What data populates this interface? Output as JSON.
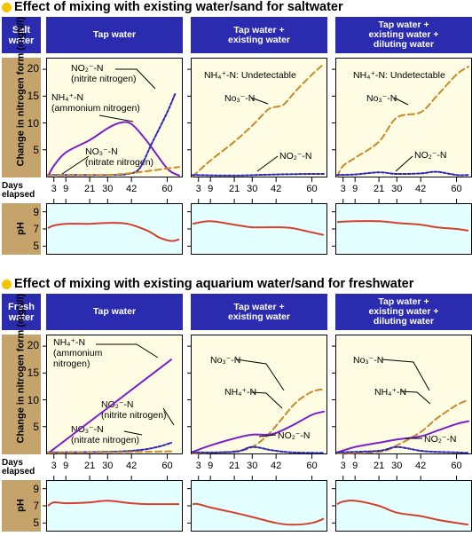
{
  "sections": [
    {
      "title": "Effect of mixing with existing water/sand for saltwater",
      "row_label": "Salt\nwater",
      "ph_label": "pH",
      "y_axis_label": "Change in nitrogen\nform (mgN/l)",
      "days_label": "Days\nelapsed",
      "columns": [
        {
          "header": "Tap water",
          "annotations": [
            {
              "text": "NO₂⁻-N\n(nitrite nitrogen)"
            },
            {
              "text": "NH₄⁺-N\n(ammonium nitrogen)"
            },
            {
              "text": "NO₃⁻-N\n(nitrate nitrogen)"
            }
          ]
        },
        {
          "header": "Tap water +\nexisting water",
          "annotations": [
            {
              "text": "NH₄⁺-N: Undetectable"
            },
            {
              "text": "No₃⁻-N"
            },
            {
              "text": "NO₂⁻-N"
            }
          ]
        },
        {
          "header": "Tap water +\nexisting water +\ndiluting water",
          "annotations": [
            {
              "text": "NH₄⁺-N: Undetectable"
            },
            {
              "text": "No₃⁻-N"
            },
            {
              "text": "NO₂⁻-N"
            }
          ]
        }
      ]
    },
    {
      "title": "Effect of mixing with existing aquarium water/sand for freshwater",
      "row_label": "Fresh\nwater",
      "ph_label": "pH",
      "y_axis_label": "Change in nitrogen\nform (mgN/l)",
      "days_label": "Days\nelapsed",
      "columns": [
        {
          "header": "Tap water",
          "annotations": [
            {
              "text": "NH₄⁺-N\n(ammonium\nnitrogen)"
            },
            {
              "text": "NO₂⁻-N\n(nitrite nitrogen)"
            },
            {
              "text": "NO₃⁻-N\n(nitrate nitrogen)"
            }
          ]
        },
        {
          "header": "Tap water +\nexisting water",
          "annotations": [
            {
              "text": "No₃⁻-N"
            },
            {
              "text": "NH₄⁺-N"
            },
            {
              "text": "NO₂⁻-N"
            }
          ]
        },
        {
          "header": "Tap water +\nexisting water +\ndiluting water",
          "annotations": [
            {
              "text": "No₃⁻-N"
            },
            {
              "text": "NH₄⁺-N"
            },
            {
              "text": "NO₂⁻-N"
            }
          ]
        }
      ]
    }
  ],
  "colors": {
    "header_bg": "#2b2bb0",
    "label_bg": "#c4a46b",
    "panel_bg": "#fffce4",
    "ph_bg": "#e4ffff",
    "ammonium": "#7a1fc9",
    "nitrite": "#2727b8",
    "nitrate": "#c98a2a",
    "ph_line": "#d4402a",
    "bullet": "#f5c400"
  },
  "chart_data": [
    {
      "type": "line",
      "panel": "saltwater-tap-water",
      "x_ticks": [
        3,
        9,
        21,
        30,
        42,
        60
      ],
      "xlim": [
        0,
        66
      ],
      "ylim": [
        0,
        22
      ],
      "y_ticks": [
        5,
        10,
        15,
        20
      ],
      "series": [
        {
          "name": "NH₄⁺-N",
          "x": [
            0,
            3,
            9,
            21,
            30,
            36,
            42,
            50,
            60,
            66
          ],
          "values": [
            0,
            2,
            4.5,
            6.8,
            9,
            10,
            9.8,
            6.5,
            1.5,
            0.2
          ]
        },
        {
          "name": "NO₂⁻-N",
          "x": [
            0,
            30,
            40,
            46,
            52,
            60,
            64
          ],
          "values": [
            0.3,
            0.3,
            0.5,
            1.5,
            6,
            12,
            15.5
          ]
        },
        {
          "name": "NO₃⁻-N",
          "x": [
            0,
            30,
            45,
            60,
            66
          ],
          "values": [
            0.2,
            0.3,
            0.8,
            1.5,
            1.8
          ]
        }
      ],
      "ph": {
        "x": [
          0,
          3,
          9,
          21,
          30,
          40,
          50,
          56,
          62,
          66
        ],
        "values": [
          7.1,
          7.4,
          7.6,
          7.6,
          7.7,
          7.6,
          6.8,
          6.0,
          5.6,
          5.8
        ],
        "ylim": [
          4,
          10
        ],
        "y_ticks": [
          5,
          7,
          9
        ]
      }
    },
    {
      "type": "line",
      "panel": "saltwater-tap-plus-existing",
      "x_ticks": [
        3,
        9,
        21,
        30,
        42,
        60
      ],
      "xlim": [
        0,
        66
      ],
      "ylim": [
        0,
        22
      ],
      "y_ticks": [
        5,
        10,
        15,
        20
      ],
      "series": [
        {
          "name": "No₃⁻-N",
          "x": [
            0,
            9,
            21,
            30,
            38,
            42,
            46,
            52,
            60,
            66
          ],
          "values": [
            0,
            3,
            6.5,
            9.5,
            12.5,
            13,
            13.5,
            16,
            19,
            21
          ]
        },
        {
          "name": "NO₂⁻-N",
          "x": [
            0,
            21,
            42,
            60,
            66
          ],
          "values": [
            0.3,
            0.2,
            0.4,
            0.5,
            0.5
          ]
        }
      ],
      "ph": {
        "x": [
          0,
          9,
          21,
          30,
          42,
          50,
          60,
          66
        ],
        "values": [
          7.6,
          7.9,
          7.5,
          7.2,
          7.2,
          7.1,
          6.6,
          6.3
        ],
        "ylim": [
          4,
          10
        ],
        "y_ticks": [
          5,
          7,
          9
        ]
      }
    },
    {
      "type": "line",
      "panel": "saltwater-tap-plus-existing-plus-diluting",
      "x_ticks": [
        3,
        9,
        21,
        30,
        42,
        60
      ],
      "xlim": [
        0,
        66
      ],
      "ylim": [
        0,
        22
      ],
      "y_ticks": [
        5,
        10,
        15,
        20
      ],
      "series": [
        {
          "name": "No₃⁻-N",
          "x": [
            0,
            3,
            9,
            21,
            30,
            42,
            50,
            60,
            66
          ],
          "values": [
            0,
            2,
            3.5,
            6.5,
            11,
            12,
            15,
            19,
            20.5
          ]
        },
        {
          "name": "NO₂⁻-N",
          "x": [
            0,
            9,
            21,
            30,
            42,
            50,
            60,
            66
          ],
          "values": [
            0.3,
            0.4,
            0.8,
            0.5,
            0.6,
            0.9,
            0.3,
            0.3
          ]
        }
      ],
      "ph": {
        "x": [
          0,
          9,
          21,
          30,
          42,
          50,
          60,
          66
        ],
        "values": [
          7.8,
          7.9,
          7.9,
          7.7,
          7.5,
          7.2,
          7.0,
          6.8
        ],
        "ylim": [
          4,
          10
        ],
        "y_ticks": [
          5,
          7,
          9
        ]
      }
    },
    {
      "type": "line",
      "panel": "freshwater-tap-water",
      "x_ticks": [
        3,
        9,
        21,
        30,
        42,
        60
      ],
      "xlim": [
        0,
        66
      ],
      "ylim": [
        0,
        22
      ],
      "y_ticks": [
        5,
        10,
        15,
        20
      ],
      "series": [
        {
          "name": "NH₄⁺-N",
          "x": [
            0,
            62
          ],
          "values": [
            0,
            17.5
          ]
        },
        {
          "name": "NO₂⁻-N",
          "x": [
            0,
            30,
            45,
            55,
            62
          ],
          "values": [
            0.2,
            0.3,
            0.6,
            1.2,
            2
          ]
        },
        {
          "name": "NO₃⁻-N",
          "x": [
            0,
            30,
            62
          ],
          "values": [
            0.1,
            0.2,
            0.4
          ]
        }
      ],
      "ph": {
        "x": [
          0,
          3,
          9,
          21,
          30,
          42,
          50,
          60,
          66
        ],
        "values": [
          7.0,
          7.4,
          7.3,
          7.4,
          7.6,
          7.3,
          7.2,
          7.2,
          7.2
        ],
        "ylim": [
          4,
          10
        ],
        "y_ticks": [
          5,
          7,
          9
        ]
      }
    },
    {
      "type": "line",
      "panel": "freshwater-tap-plus-existing",
      "x_ticks": [
        3,
        9,
        21,
        30,
        42,
        60
      ],
      "xlim": [
        0,
        66
      ],
      "ylim": [
        0,
        22
      ],
      "y_ticks": [
        5,
        10,
        15,
        20
      ],
      "series": [
        {
          "name": "No₃⁻-N",
          "x": [
            0,
            21,
            30,
            38,
            45,
            52,
            60,
            66
          ],
          "values": [
            0,
            0.4,
            1.2,
            3.5,
            6.5,
            9.5,
            11.5,
            12
          ]
        },
        {
          "name": "NH₄⁺-N",
          "x": [
            0,
            9,
            21,
            30,
            40,
            50,
            60,
            66
          ],
          "values": [
            0.3,
            1.5,
            2.8,
            3.5,
            3.6,
            5.2,
            7.2,
            7.8
          ]
        },
        {
          "name": "NO₂⁻-N",
          "x": [
            0,
            21,
            30,
            40,
            50,
            66
          ],
          "values": [
            0.2,
            0.3,
            1.2,
            0.6,
            0.2,
            0.1
          ]
        }
      ],
      "ph": {
        "x": [
          0,
          3,
          9,
          21,
          30,
          42,
          50,
          60,
          66
        ],
        "values": [
          7.2,
          7.2,
          6.8,
          6.2,
          5.7,
          5.0,
          4.8,
          5.0,
          5.5
        ],
        "ylim": [
          4,
          10
        ],
        "y_ticks": [
          5,
          7,
          9
        ]
      }
    },
    {
      "type": "line",
      "panel": "freshwater-tap-plus-existing-plus-diluting",
      "x_ticks": [
        3,
        9,
        21,
        30,
        42,
        60
      ],
      "xlim": [
        0,
        66
      ],
      "ylim": [
        0,
        22
      ],
      "y_ticks": [
        5,
        10,
        15,
        20
      ],
      "series": [
        {
          "name": "No₃⁻-N",
          "x": [
            0,
            21,
            30,
            42,
            50,
            60,
            66
          ],
          "values": [
            0,
            0.3,
            1.5,
            4,
            6.5,
            9,
            10
          ]
        },
        {
          "name": "NH₄⁺-N",
          "x": [
            0,
            9,
            21,
            30,
            42,
            50,
            60,
            66
          ],
          "values": [
            0.2,
            1.2,
            2,
            2.6,
            3.2,
            4.2,
            5.5,
            6
          ]
        },
        {
          "name": "NO₂⁻-N",
          "x": [
            0,
            21,
            30,
            42,
            50,
            60,
            66
          ],
          "values": [
            0.2,
            0.5,
            1.2,
            0.5,
            0.3,
            0.2,
            0.1
          ]
        }
      ],
      "ph": {
        "x": [
          0,
          3,
          9,
          21,
          30,
          42,
          50,
          60,
          66
        ],
        "values": [
          7.2,
          7.5,
          7.6,
          7.0,
          6.2,
          5.8,
          5.4,
          5.0,
          4.8
        ],
        "ylim": [
          4,
          10
        ],
        "y_ticks": [
          5,
          7,
          9
        ]
      }
    }
  ]
}
